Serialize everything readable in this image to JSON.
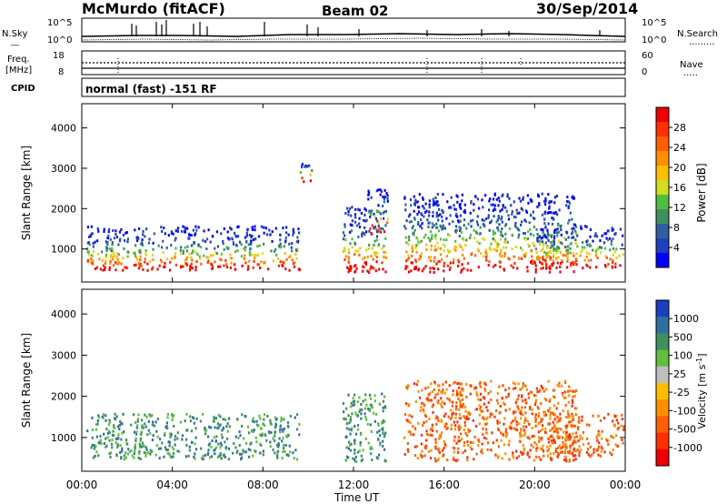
{
  "header": {
    "station": "McMurdo (fitACF)",
    "beam": "Beam 02",
    "date": "30/Sep/2014"
  },
  "noise_panel": {
    "left_label": "N.Sky",
    "right_label": "N.Search",
    "left_ticks": [
      "10^5",
      "10^0"
    ],
    "right_ticks": [
      "10^5",
      "10^0"
    ]
  },
  "freq_panel": {
    "left_label_1": "Freq.",
    "left_label_2": "[MHz]",
    "right_label": "Nave",
    "left_ticks": [
      "18",
      "8"
    ],
    "right_ticks": [
      "60",
      "0"
    ],
    "cpid_label": "CPID",
    "cpid_text": "normal (fast) -151 RF"
  },
  "chart_data": [
    {
      "type": "heatmap",
      "title": "",
      "xlabel": "Time UT",
      "ylabel": "Slant Range [km]",
      "xlim": [
        "00:00",
        "24:00"
      ],
      "ylim": [
        180,
        4600
      ],
      "x_ticks": [
        "00:00",
        "04:00",
        "08:00",
        "12:00",
        "16:00",
        "20:00",
        "00:00"
      ],
      "y_ticks": [
        "1000",
        "2000",
        "3000",
        "4000"
      ],
      "colorbar": {
        "label": "Power [dB]",
        "ticks": [
          "4",
          "8",
          "12",
          "16",
          "20",
          "24",
          "28"
        ],
        "colors": [
          "#0000ff",
          "#1e3fbf",
          "#2f5f9f",
          "#3f8f5f",
          "#4fbf3f",
          "#cfdf1f",
          "#ffbf00",
          "#ff8f00",
          "#ff5f00",
          "#ff2f00",
          "#ee0000"
        ]
      },
      "echo_regions": [
        {
          "t_start": 0.2,
          "t_end": 9.6,
          "r_min": 500,
          "r_max": 1600
        },
        {
          "t_start": 9.6,
          "t_end": 10.2,
          "r_min": 2700,
          "r_max": 3200
        },
        {
          "t_start": 11.5,
          "t_end": 13.4,
          "r_min": 450,
          "r_max": 2100
        },
        {
          "t_start": 12.6,
          "t_end": 13.5,
          "r_min": 1400,
          "r_max": 2500
        },
        {
          "t_start": 14.2,
          "t_end": 21.8,
          "r_min": 450,
          "r_max": 2400
        },
        {
          "t_start": 20.0,
          "t_end": 23.9,
          "r_min": 550,
          "r_max": 1600
        }
      ]
    },
    {
      "type": "heatmap",
      "title": "",
      "xlabel": "Time UT",
      "ylabel": "Slant Range [km]",
      "xlim": [
        "00:00",
        "24:00"
      ],
      "ylim": [
        180,
        4600
      ],
      "x_ticks": [
        "00:00",
        "04:00",
        "08:00",
        "12:00",
        "16:00",
        "20:00",
        "00:00"
      ],
      "y_ticks": [
        "1000",
        "2000",
        "3000",
        "4000"
      ],
      "colorbar": {
        "label": "Velocity [m s^-1]",
        "ticks": [
          "1000",
          "500",
          "100",
          "25",
          "-25",
          "-100",
          "-500",
          "-1000"
        ],
        "colors": [
          "#1a3fbf",
          "#2f6f9f",
          "#3f8f5f",
          "#5fbf3f",
          "#bfbfbf",
          "#ffbf00",
          "#ff8f00",
          "#ff5f00",
          "#ff2f00",
          "#ee0000"
        ]
      },
      "echo_regions": [
        {
          "t_start": 0.2,
          "t_end": 9.6,
          "r_min": 500,
          "r_max": 1600
        },
        {
          "t_start": 11.5,
          "t_end": 13.4,
          "r_min": 450,
          "r_max": 2100
        },
        {
          "t_start": 14.2,
          "t_end": 21.8,
          "r_min": 450,
          "r_max": 2400
        },
        {
          "t_start": 20.0,
          "t_end": 23.9,
          "r_min": 550,
          "r_max": 1600
        }
      ]
    }
  ]
}
